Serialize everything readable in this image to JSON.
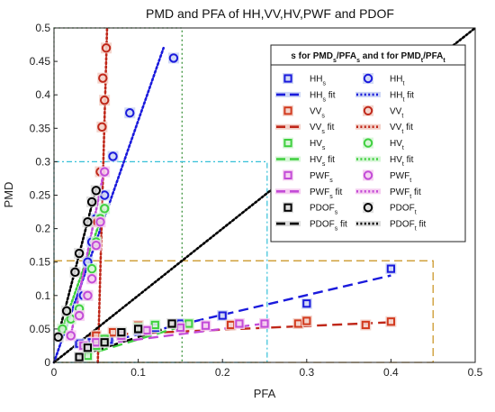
{
  "chart_data": {
    "type": "scatter",
    "title": "PMD and PFA of HH,VV,HV,PWF and PDOF",
    "xlabel": "PFA",
    "ylabel": "PMD",
    "xlim": [
      0,
      0.5
    ],
    "ylim": [
      0,
      0.5
    ],
    "xticks": [
      "0",
      "0.1",
      "0.2",
      "0.3",
      "0.4",
      "0.5"
    ],
    "yticks": [
      "0",
      "0.05",
      "0.1",
      "0.15",
      "0.2",
      "0.25",
      "0.3",
      "0.35",
      "0.4",
      "0.45",
      "0.5"
    ],
    "grid": false,
    "legend": {
      "placement": "top-right",
      "header": "s for PMDs/PFAs and t for PMDt/PFAt",
      "entries": [
        {
          "label": "HHs",
          "sub": "s",
          "base": "HH",
          "suffix": ""
        },
        {
          "label": "HHt",
          "sub": "t",
          "base": "HH",
          "suffix": ""
        },
        {
          "label": "HHs fit",
          "sub": "s",
          "base": "HH",
          "suffix": " fit"
        },
        {
          "label": "HHt fit",
          "sub": "t",
          "base": "HH",
          "suffix": " fit"
        },
        {
          "label": "VVs",
          "sub": "s",
          "base": "VV",
          "suffix": ""
        },
        {
          "label": "VVt",
          "sub": "t",
          "base": "VV",
          "suffix": ""
        },
        {
          "label": "VVs fit",
          "sub": "s",
          "base": "VV",
          "suffix": " fit"
        },
        {
          "label": "VVt fit",
          "sub": "t",
          "base": "VV",
          "suffix": " fit"
        },
        {
          "label": "HVs",
          "sub": "s",
          "base": "HV",
          "suffix": ""
        },
        {
          "label": "HVt",
          "sub": "t",
          "base": "HV",
          "suffix": ""
        },
        {
          "label": "HVs fit",
          "sub": "s",
          "base": "HV",
          "suffix": " fit"
        },
        {
          "label": "HVt fit",
          "sub": "t",
          "base": "HV",
          "suffix": " fit"
        },
        {
          "label": "PWFs",
          "sub": "s",
          "base": "PWF",
          "suffix": ""
        },
        {
          "label": "PWFt",
          "sub": "t",
          "base": "PWF",
          "suffix": ""
        },
        {
          "label": "PWFs fit",
          "sub": "s",
          "base": "PWF",
          "suffix": " fit"
        },
        {
          "label": "PWFt fit",
          "sub": "t",
          "base": "PWF",
          "suffix": " fit"
        },
        {
          "label": "PDOFs",
          "sub": "s",
          "base": "PDOF",
          "suffix": ""
        },
        {
          "label": "PDOFt",
          "sub": "t",
          "base": "PDOF",
          "suffix": ""
        },
        {
          "label": "PDOFs fit",
          "sub": "s",
          "base": "PDOF",
          "suffix": " fit"
        },
        {
          "label": "PDOFt fit",
          "sub": "t",
          "base": "PDOF",
          "suffix": " fit"
        }
      ]
    },
    "series": [
      {
        "name": "HHs",
        "group": "HH",
        "kind": "s",
        "color": "#1a1adc",
        "highlight": "#cdd6f5",
        "x": [
          0.03,
          0.045,
          0.065,
          0.08,
          0.1,
          0.12,
          0.15,
          0.2,
          0.3,
          0.4
        ],
        "y": [
          0.028,
          0.03,
          0.034,
          0.04,
          0.048,
          0.052,
          0.058,
          0.07,
          0.088,
          0.14
        ]
      },
      {
        "name": "HHt",
        "group": "HH",
        "kind": "t",
        "color": "#1a1adc",
        "highlight": "#cdd6f5",
        "x": [
          0.035,
          0.04,
          0.045,
          0.05,
          0.06,
          0.07,
          0.09,
          0.142
        ],
        "y": [
          0.1,
          0.15,
          0.18,
          0.215,
          0.25,
          0.308,
          0.373,
          0.455
        ]
      },
      {
        "name": "VVs",
        "group": "VV",
        "kind": "s",
        "color": "#d23a1e",
        "highlight": "#f3d0c8",
        "x": [
          0.05,
          0.07,
          0.1,
          0.16,
          0.21,
          0.29,
          0.3,
          0.37,
          0.4
        ],
        "y": [
          0.04,
          0.045,
          0.055,
          0.057,
          0.056,
          0.058,
          0.062,
          0.056,
          0.061
        ]
      },
      {
        "name": "VVt",
        "group": "VV",
        "kind": "t",
        "color": "#c0281a",
        "highlight": "#f3d0c8",
        "x": [
          0.052,
          0.055,
          0.057,
          0.058,
          0.06,
          0.062
        ],
        "y": [
          0.21,
          0.285,
          0.352,
          0.425,
          0.392,
          0.47
        ]
      },
      {
        "name": "HVs",
        "group": "HV",
        "kind": "s",
        "color": "#3fd03f",
        "highlight": "#d6f5d6",
        "x": [
          0.04,
          0.05,
          0.06,
          0.08,
          0.1,
          0.12,
          0.16
        ],
        "y": [
          0.01,
          0.025,
          0.035,
          0.045,
          0.052,
          0.056,
          0.058
        ]
      },
      {
        "name": "HVt",
        "group": "HV",
        "kind": "t",
        "color": "#3fd03f",
        "highlight": "#d6f5d6",
        "x": [
          0.01,
          0.02,
          0.03,
          0.04,
          0.045,
          0.05,
          0.055,
          0.06
        ],
        "y": [
          0.05,
          0.065,
          0.08,
          0.1,
          0.14,
          0.18,
          0.215,
          0.23
        ]
      },
      {
        "name": "PWFs",
        "group": "PWF",
        "kind": "s",
        "color": "#c34bd8",
        "highlight": "#f5cdf0",
        "x": [
          0.035,
          0.05,
          0.08,
          0.11,
          0.15,
          0.18,
          0.22,
          0.25
        ],
        "y": [
          0.025,
          0.03,
          0.04,
          0.048,
          0.052,
          0.055,
          0.058,
          0.058
        ]
      },
      {
        "name": "PWFt",
        "group": "PWF",
        "kind": "t",
        "color": "#c34bd8",
        "highlight": "#f5cdf0",
        "x": [
          0.02,
          0.03,
          0.04,
          0.045,
          0.05,
          0.055,
          0.06
        ],
        "y": [
          0.04,
          0.07,
          0.1,
          0.125,
          0.175,
          0.21,
          0.285
        ]
      },
      {
        "name": "PDOFs",
        "group": "PDOF",
        "kind": "s",
        "color": "#000000",
        "highlight": "#dddddd",
        "x": [
          0.03,
          0.04,
          0.06,
          0.08,
          0.1,
          0.14
        ],
        "y": [
          0.008,
          0.022,
          0.03,
          0.045,
          0.05,
          0.058
        ]
      },
      {
        "name": "PDOFt",
        "group": "PDOF",
        "kind": "t",
        "color": "#000000",
        "highlight": "#dddddd",
        "x": [
          0.005,
          0.015,
          0.025,
          0.03,
          0.04,
          0.05,
          0.045
        ],
        "y": [
          0.038,
          0.077,
          0.135,
          0.163,
          0.21,
          0.257,
          0.24
        ]
      }
    ],
    "fits": [
      {
        "name": "HHs fit",
        "color": "#1a1adc",
        "style": "dash",
        "x": [
          0.06,
          0.4
        ],
        "y": [
          0.03,
          0.13
        ]
      },
      {
        "name": "HHt fit",
        "color": "#1a1adc",
        "style": "dot",
        "x": [
          0.0,
          0.13
        ],
        "y": [
          0.0,
          0.47
        ]
      },
      {
        "name": "VVs fit",
        "color": "#c0281a",
        "style": "dash",
        "x": [
          0.04,
          0.4
        ],
        "y": [
          0.04,
          0.06
        ]
      },
      {
        "name": "VVt fit",
        "color": "#c0281a",
        "style": "dot",
        "x": [
          0.052,
          0.063
        ],
        "y": [
          0.0,
          0.5
        ]
      },
      {
        "name": "HVs fit",
        "color": "#3fd03f",
        "style": "dash",
        "x": [
          0.035,
          0.16
        ],
        "y": [
          0.01,
          0.057
        ]
      },
      {
        "name": "HVt fit",
        "color": "#3fd03f",
        "style": "dot",
        "x": [
          0.01,
          0.06
        ],
        "y": [
          0.05,
          0.23
        ]
      },
      {
        "name": "PWFs fit",
        "color": "#c34bd8",
        "style": "dash",
        "x": [
          0.04,
          0.25
        ],
        "y": [
          0.025,
          0.058
        ]
      },
      {
        "name": "PWFt fit",
        "color": "#c34bd8",
        "style": "dot",
        "x": [
          0.02,
          0.06
        ],
        "y": [
          0.04,
          0.29
        ]
      },
      {
        "name": "PDOFs fit",
        "color": "#000000",
        "style": "dash",
        "x": [
          0.03,
          0.15
        ],
        "y": [
          0.01,
          0.058
        ]
      },
      {
        "name": "PDOFt fit",
        "color": "#000000",
        "style": "dot",
        "x": [
          0.005,
          0.05
        ],
        "y": [
          0.04,
          0.26
        ]
      },
      {
        "name": "diagonal",
        "color": "#000000",
        "style": "dot",
        "x": [
          0.0,
          0.5
        ],
        "y": [
          0.0,
          0.5
        ]
      }
    ],
    "regions": [
      {
        "name": "region-hv",
        "color": "#2e8b2e",
        "style": "dot",
        "x": [
          0,
          0.152
        ],
        "y": [
          0,
          0.5
        ]
      },
      {
        "name": "region-pwf",
        "color": "#35c0d8",
        "style": "dashdot",
        "x": [
          0,
          0.253
        ],
        "y": [
          0,
          0.3
        ]
      },
      {
        "name": "region-vv",
        "color": "#c8901a",
        "style": "dash",
        "x": [
          0,
          0.45
        ],
        "y": [
          0,
          0.152
        ]
      }
    ]
  }
}
